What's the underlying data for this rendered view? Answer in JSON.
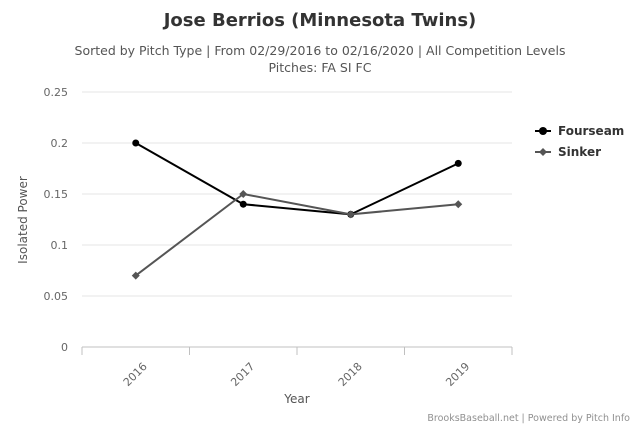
{
  "chart_data": {
    "type": "line",
    "title": "Jose Berrios (Minnesota Twins)",
    "subtitle_lines": [
      "Sorted by Pitch Type | From 02/29/2016 to 02/16/2020 | All Competition Levels",
      "Pitches: FA SI FC"
    ],
    "xlabel": "Year",
    "ylabel": "Isolated Power",
    "categories": [
      "2016",
      "2017",
      "2018",
      "2019"
    ],
    "yticks": [
      "0",
      "0.05",
      "0.1",
      "0.15",
      "0.2",
      "0.25"
    ],
    "ylim": [
      0,
      0.25
    ],
    "grid": true,
    "legend_position": "right",
    "series": [
      {
        "name": "Fourseam",
        "values": [
          0.2,
          0.14,
          0.13,
          0.18
        ],
        "color": "#000000",
        "marker": "circle"
      },
      {
        "name": "Sinker",
        "values": [
          0.07,
          0.15,
          0.13,
          0.14
        ],
        "color": "#555555",
        "marker": "diamond"
      }
    ],
    "credits": "BrooksBaseball.net | Powered by Pitch Info"
  }
}
